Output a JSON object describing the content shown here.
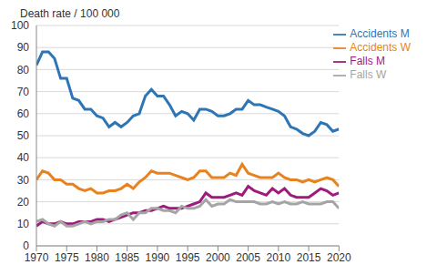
{
  "chart_data": {
    "type": "line",
    "y_label": "Death rate / 100 000",
    "x": [
      1970,
      1971,
      1972,
      1973,
      1974,
      1975,
      1976,
      1977,
      1978,
      1979,
      1980,
      1981,
      1982,
      1983,
      1984,
      1985,
      1986,
      1987,
      1988,
      1989,
      1990,
      1991,
      1992,
      1993,
      1994,
      1995,
      1996,
      1997,
      1998,
      1999,
      2000,
      2001,
      2002,
      2003,
      2004,
      2005,
      2006,
      2007,
      2008,
      2009,
      2010,
      2011,
      2012,
      2013,
      2014,
      2015,
      2016,
      2017,
      2018,
      2019,
      2020
    ],
    "xlim": [
      1970,
      2020
    ],
    "xticks": [
      1970,
      1975,
      1980,
      1985,
      1990,
      1995,
      2000,
      2005,
      2010,
      2015,
      2020
    ],
    "ylim": [
      0,
      100
    ],
    "yticks": [
      0,
      10,
      20,
      30,
      40,
      50,
      60,
      70,
      80,
      90,
      100
    ],
    "grid": true,
    "legend": "top-right",
    "series": [
      {
        "name": "Accidents M",
        "color": "#2e75b6",
        "values": [
          82,
          88,
          88,
          85,
          76,
          76,
          67,
          66,
          62,
          62,
          59,
          58,
          54,
          56,
          54,
          56,
          59,
          60,
          68,
          71,
          68,
          68,
          64,
          59,
          61,
          60,
          57,
          62,
          62,
          61,
          59,
          59,
          60,
          62,
          62,
          66,
          64,
          64,
          63,
          62,
          61,
          59,
          54,
          53,
          51,
          50,
          52,
          56,
          55,
          52,
          53
        ]
      },
      {
        "name": "Accidents W",
        "color": "#e8821e",
        "values": [
          30,
          34,
          33,
          30,
          30,
          28,
          28,
          26,
          25,
          26,
          24,
          24,
          25,
          25,
          26,
          28,
          26,
          29,
          31,
          34,
          33,
          33,
          33,
          32,
          31,
          30,
          31,
          34,
          34,
          31,
          31,
          31,
          33,
          32,
          37,
          33,
          32,
          31,
          31,
          31,
          33,
          31,
          30,
          30,
          29,
          30,
          29,
          30,
          31,
          30,
          27
        ]
      },
      {
        "name": "Falls M",
        "color": "#9e1a7c",
        "values": [
          9,
          11,
          10,
          10,
          11,
          10,
          10,
          11,
          11,
          11,
          12,
          12,
          11,
          12,
          13,
          14,
          15,
          15,
          16,
          16,
          17,
          18,
          17,
          17,
          17,
          18,
          19,
          20,
          24,
          22,
          22,
          22,
          23,
          24,
          23,
          27,
          25,
          24,
          23,
          26,
          24,
          26,
          23,
          22,
          22,
          22,
          24,
          26,
          25,
          23,
          24
        ]
      },
      {
        "name": "Falls W",
        "color": "#a5a5a5",
        "values": [
          11,
          12,
          10,
          9,
          11,
          9,
          9,
          10,
          11,
          10,
          11,
          11,
          12,
          12,
          14,
          15,
          12,
          15,
          15,
          17,
          17,
          16,
          16,
          15,
          18,
          17,
          17,
          18,
          21,
          18,
          19,
          19,
          21,
          20,
          20,
          20,
          20,
          19,
          19,
          20,
          19,
          20,
          19,
          19,
          20,
          19,
          19,
          19,
          20,
          20,
          17
        ]
      }
    ]
  }
}
